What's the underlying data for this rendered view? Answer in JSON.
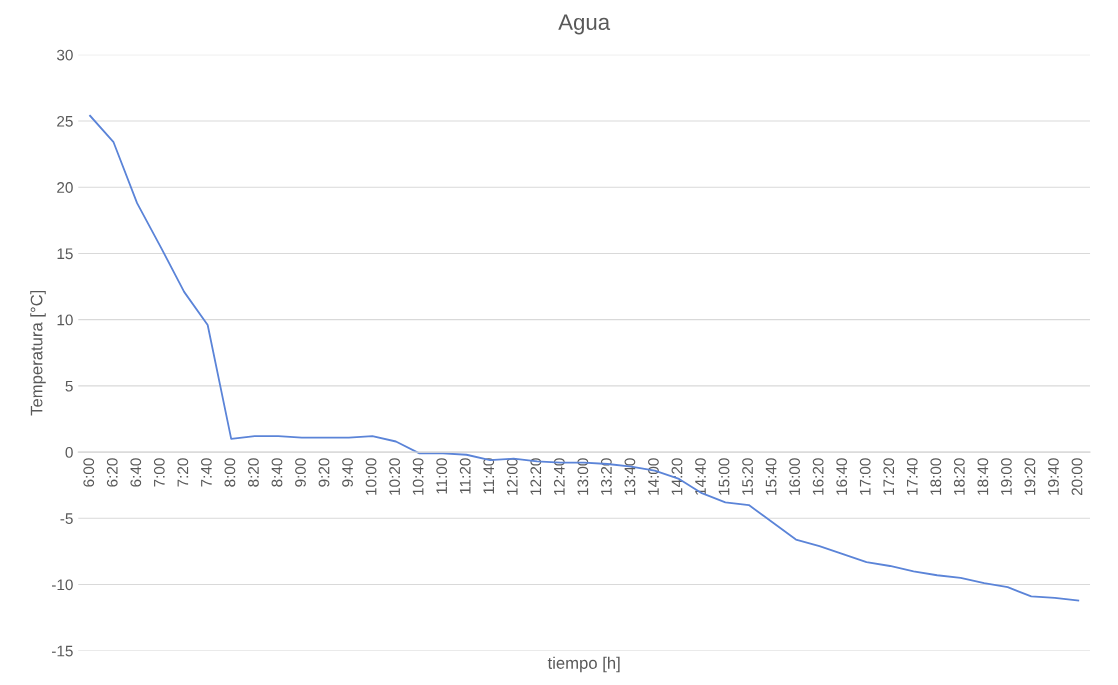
{
  "chart_data": {
    "type": "line",
    "title": "Agua",
    "xlabel": "tiempo [h]",
    "ylabel": "Temperatura [°C]",
    "categories": [
      "6:00",
      "6:20",
      "6:40",
      "7:00",
      "7:20",
      "7:40",
      "8:00",
      "8:20",
      "8:40",
      "9:00",
      "9:20",
      "9:40",
      "10:00",
      "10:20",
      "10:40",
      "11:00",
      "11:20",
      "11:40",
      "12:00",
      "12:20",
      "12:40",
      "13:00",
      "13:20",
      "13:40",
      "14:00",
      "14:20",
      "14:40",
      "15:00",
      "15:20",
      "15:40",
      "16:00",
      "16:20",
      "16:40",
      "17:00",
      "17:20",
      "17:40",
      "18:00",
      "18:20",
      "18:40",
      "19:00",
      "19:20",
      "19:40",
      "20:00"
    ],
    "series": [
      {
        "color": "#5b84d8",
        "values": [
          25.4,
          23.4,
          18.8,
          15.5,
          12.1,
          9.6,
          1.0,
          1.2,
          1.2,
          1.1,
          1.1,
          1.1,
          1.2,
          0.8,
          -0.1,
          -0.1,
          -0.2,
          -0.6,
          -0.5,
          -0.7,
          -0.8,
          -0.8,
          -0.9,
          -1.1,
          -1.4,
          -2.0,
          -3.1,
          -3.8,
          -4.0,
          -5.3,
          -6.6,
          -7.1,
          -7.7,
          -8.3,
          -8.6,
          -9.0,
          -9.3,
          -9.5,
          -9.9,
          -10.2,
          -10.9,
          -11.0,
          -11.2
        ]
      }
    ],
    "ylim": [
      -15,
      30
    ],
    "yticks": [
      -15,
      -10,
      -5,
      0,
      5,
      10,
      15,
      20,
      25,
      30
    ],
    "grid": "y",
    "legend": false,
    "marker": "none",
    "line_style": "solid"
  }
}
